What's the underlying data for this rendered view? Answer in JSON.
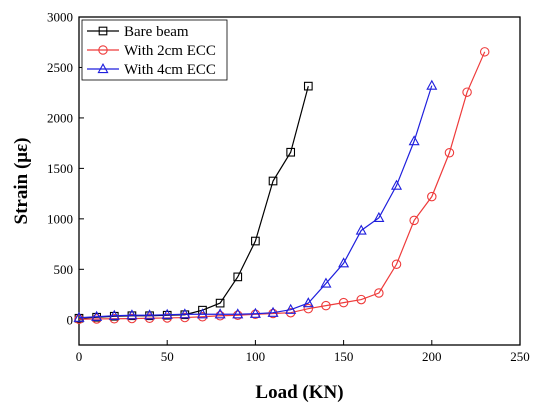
{
  "chart_data": {
    "type": "line",
    "title": "",
    "xlabel": "Load (KN)",
    "ylabel": "Strain (με)",
    "xlim": [
      0,
      250
    ],
    "ylim": [
      -250,
      3000
    ],
    "xticks": [
      0,
      50,
      100,
      150,
      200,
      250
    ],
    "yticks": [
      0,
      500,
      1000,
      1500,
      2000,
      2500,
      3000
    ],
    "grid": false,
    "legend_position": "top-left",
    "series": [
      {
        "name": "Bare beam",
        "color": "#000000",
        "marker": "square",
        "x": [
          0,
          10,
          20,
          30,
          40,
          50,
          60,
          70,
          80,
          90,
          100,
          110,
          120,
          130
        ],
        "y": [
          15,
          25,
          35,
          40,
          40,
          45,
          50,
          95,
          165,
          425,
          780,
          1375,
          1660,
          2315
        ]
      },
      {
        "name": "With 2cm ECC",
        "color": "#ee3b3b",
        "marker": "circle",
        "x": [
          0,
          10,
          20,
          30,
          40,
          50,
          60,
          70,
          80,
          90,
          100,
          110,
          120,
          130,
          140,
          150,
          160,
          170,
          180,
          190,
          200,
          210,
          220,
          230
        ],
        "y": [
          5,
          8,
          10,
          12,
          15,
          18,
          22,
          30,
          40,
          45,
          55,
          62,
          70,
          110,
          140,
          170,
          200,
          265,
          550,
          985,
          1220,
          1655,
          2255,
          2655
        ]
      },
      {
        "name": "With 4cm ECC",
        "color": "#1f1fdd",
        "marker": "triangle",
        "x": [
          0,
          10,
          20,
          30,
          40,
          50,
          60,
          70,
          80,
          90,
          100,
          110,
          120,
          130,
          140,
          150,
          160,
          170,
          180,
          190,
          200
        ],
        "y": [
          20,
          30,
          40,
          45,
          45,
          50,
          55,
          55,
          55,
          55,
          60,
          70,
          100,
          165,
          360,
          560,
          885,
          1010,
          1330,
          1770,
          2320
        ]
      }
    ]
  }
}
